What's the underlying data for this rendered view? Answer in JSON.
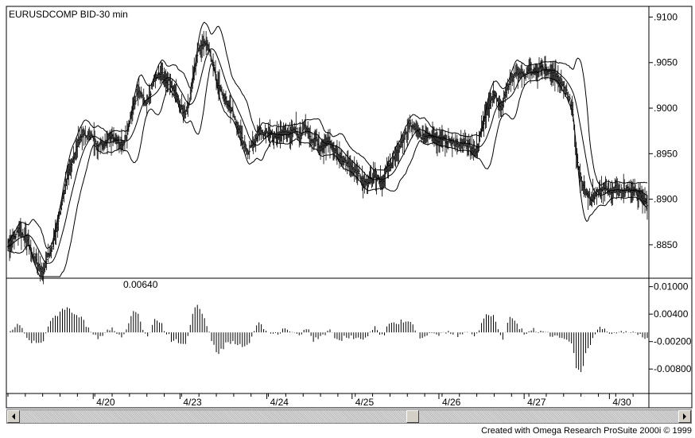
{
  "chart_data": {
    "type": "bar",
    "title": "EURUSDCOMP BID-30 min",
    "price_panel": {
      "ylim": [
        0.8815,
        0.911
      ],
      "y_ticks": [
        ".9100",
        ".9050",
        ".9000",
        ".8950",
        ".8900",
        ".8850"
      ],
      "y_tick_values": [
        0.91,
        0.905,
        0.9,
        0.895,
        0.89,
        0.885
      ],
      "anchor_prices": [
        [
          0,
          0.8848
        ],
        [
          5,
          0.8855
        ],
        [
          10,
          0.886
        ],
        [
          14,
          0.8868
        ],
        [
          18,
          0.8862
        ],
        [
          22,
          0.8858
        ],
        [
          26,
          0.8855
        ],
        [
          30,
          0.884
        ],
        [
          35,
          0.8835
        ],
        [
          40,
          0.8825
        ],
        [
          45,
          0.882
        ],
        [
          50,
          0.8838
        ],
        [
          55,
          0.8845
        ],
        [
          60,
          0.8862
        ],
        [
          65,
          0.888
        ],
        [
          70,
          0.8905
        ],
        [
          75,
          0.892
        ],
        [
          80,
          0.8938
        ],
        [
          85,
          0.895
        ],
        [
          90,
          0.8965
        ],
        [
          95,
          0.8972
        ],
        [
          100,
          0.8968
        ],
        [
          105,
          0.8972
        ],
        [
          110,
          0.8962
        ],
        [
          120,
          0.896
        ],
        [
          125,
          0.8965
        ],
        [
          130,
          0.897
        ],
        [
          135,
          0.8968
        ],
        [
          140,
          0.8962
        ],
        [
          145,
          0.8958
        ],
        [
          150,
          0.897
        ],
        [
          155,
          0.899
        ],
        [
          160,
          0.9005
        ],
        [
          165,
          0.9018
        ],
        [
          170,
          0.9012
        ],
        [
          175,
          0.9002
        ],
        [
          180,
          0.9015
        ],
        [
          185,
          0.903
        ],
        [
          190,
          0.9035
        ],
        [
          195,
          0.904
        ],
        [
          200,
          0.903
        ],
        [
          205,
          0.9028
        ],
        [
          210,
          0.902
        ],
        [
          215,
          0.901
        ],
        [
          220,
          0.9
        ],
        [
          225,
          0.8995
        ],
        [
          230,
          0.901
        ],
        [
          235,
          0.9035
        ],
        [
          240,
          0.906
        ],
        [
          245,
          0.907
        ],
        [
          250,
          0.9072
        ],
        [
          255,
          0.9062
        ],
        [
          260,
          0.905
        ],
        [
          265,
          0.9028
        ],
        [
          270,
          0.9018
        ],
        [
          275,
          0.901
        ],
        [
          280,
          0.9002
        ],
        [
          285,
          0.8995
        ],
        [
          290,
          0.8982
        ],
        [
          295,
          0.897
        ],
        [
          300,
          0.8958
        ],
        [
          305,
          0.8952
        ],
        [
          310,
          0.896
        ],
        [
          315,
          0.8968
        ],
        [
          320,
          0.8975
        ],
        [
          325,
          0.8972
        ],
        [
          330,
          0.8975
        ],
        [
          335,
          0.897
        ],
        [
          340,
          0.8965
        ],
        [
          345,
          0.8972
        ],
        [
          350,
          0.8975
        ],
        [
          355,
          0.8972
        ],
        [
          360,
          0.8978
        ],
        [
          365,
          0.8975
        ],
        [
          370,
          0.8968
        ],
        [
          375,
          0.8982
        ],
        [
          380,
          0.8975
        ],
        [
          385,
          0.8962
        ],
        [
          390,
          0.8968
        ],
        [
          395,
          0.8955
        ],
        [
          400,
          0.8958
        ],
        [
          405,
          0.8965
        ],
        [
          410,
          0.896
        ],
        [
          415,
          0.8952
        ],
        [
          420,
          0.8945
        ],
        [
          425,
          0.8942
        ],
        [
          430,
          0.894
        ],
        [
          435,
          0.8935
        ],
        [
          440,
          0.8932
        ],
        [
          445,
          0.8928
        ],
        [
          450,
          0.8918
        ],
        [
          455,
          0.892
        ],
        [
          460,
          0.8922
        ],
        [
          465,
          0.8928
        ],
        [
          470,
          0.8922
        ],
        [
          475,
          0.892
        ],
        [
          480,
          0.8932
        ],
        [
          485,
          0.8938
        ],
        [
          490,
          0.8945
        ],
        [
          495,
          0.8955
        ],
        [
          500,
          0.8965
        ],
        [
          505,
          0.8972
        ],
        [
          510,
          0.8982
        ],
        [
          515,
          0.8978
        ],
        [
          520,
          0.8972
        ],
        [
          525,
          0.8968
        ],
        [
          530,
          0.897
        ],
        [
          535,
          0.8972
        ],
        [
          540,
          0.8968
        ],
        [
          545,
          0.8965
        ],
        [
          550,
          0.8968
        ],
        [
          555,
          0.8962
        ],
        [
          560,
          0.8965
        ],
        [
          565,
          0.8962
        ],
        [
          570,
          0.8958
        ],
        [
          575,
          0.896
        ],
        [
          580,
          0.8962
        ],
        [
          585,
          0.8958
        ],
        [
          590,
          0.8952
        ],
        [
          595,
          0.8955
        ],
        [
          600,
          0.8975
        ],
        [
          605,
          0.8992
        ],
        [
          610,
          0.9005
        ],
        [
          615,
          0.9015
        ],
        [
          620,
          0.901
        ],
        [
          625,
          0.9
        ],
        [
          630,
          0.9015
        ],
        [
          635,
          0.9028
        ],
        [
          640,
          0.9035
        ],
        [
          645,
          0.904
        ],
        [
          650,
          0.9038
        ],
        [
          655,
          0.9035
        ],
        [
          660,
          0.904
        ],
        [
          665,
          0.9042
        ],
        [
          670,
          0.904
        ],
        [
          675,
          0.9045
        ],
        [
          680,
          0.9042
        ],
        [
          685,
          0.904
        ],
        [
          690,
          0.9038
        ],
        [
          695,
          0.9035
        ],
        [
          700,
          0.9028
        ],
        [
          705,
          0.902
        ],
        [
          710,
          0.9015
        ],
        [
          715,
          0.9
        ],
        [
          720,
          0.895
        ],
        [
          725,
          0.8925
        ],
        [
          730,
          0.8912
        ],
        [
          735,
          0.8905
        ],
        [
          740,
          0.89
        ],
        [
          745,
          0.8905
        ],
        [
          750,
          0.8908
        ],
        [
          755,
          0.891
        ],
        [
          760,
          0.8912
        ],
        [
          765,
          0.8908
        ],
        [
          770,
          0.8912
        ],
        [
          775,
          0.891
        ],
        [
          780,
          0.8908
        ],
        [
          785,
          0.8912
        ],
        [
          790,
          0.891
        ],
        [
          795,
          0.8908
        ],
        [
          800,
          0.8905
        ],
        [
          805,
          0.89
        ],
        [
          810,
          0.8895
        ]
      ]
    },
    "indicator_panel": {
      "label": "0.00640",
      "label_value": 0.0064,
      "ylim": [
        -0.013,
        0.0115
      ],
      "y_ticks": [
        "0.01000",
        "0.00400",
        "-0.00200",
        "-0.00800"
      ],
      "y_tick_values": [
        0.01,
        0.004,
        -0.002,
        -0.008
      ]
    },
    "x_tick_labels": [
      "4/20",
      "4/23",
      "4/24",
      "4/25",
      "4/26",
      "4/27",
      "4/30"
    ],
    "x_tick_bars": [
      108,
      218,
      328,
      436,
      546,
      654,
      762
    ],
    "bar_count": 811
  },
  "scrollbar": {
    "left_arrow": "left-arrow",
    "right_arrow": "right-arrow"
  },
  "footer": {
    "credit": "Created with Omega Research ProSuite 2000i © 1999"
  }
}
